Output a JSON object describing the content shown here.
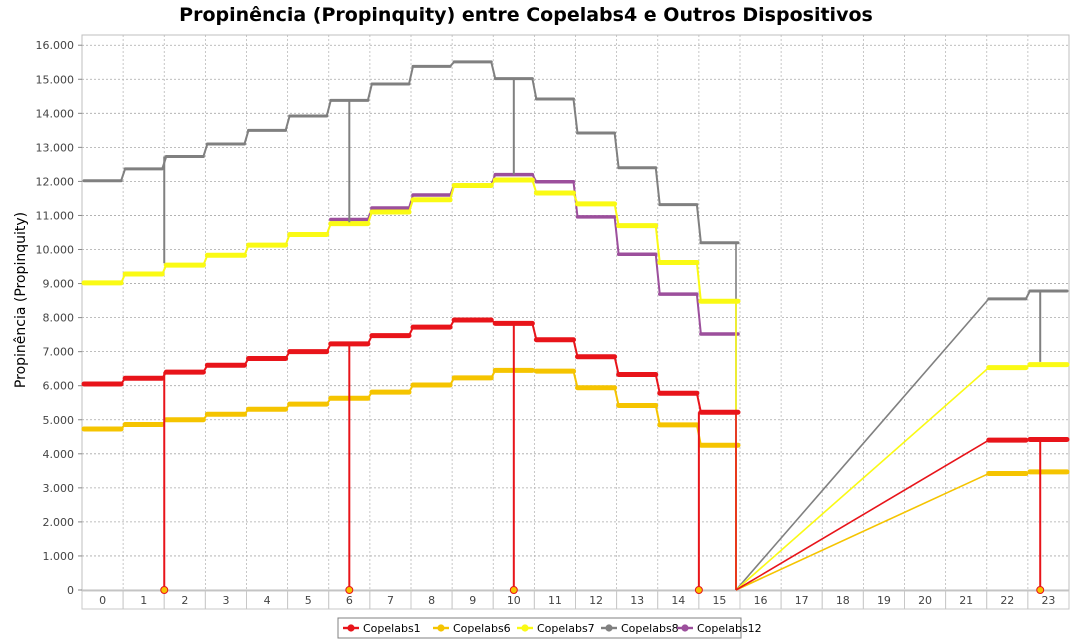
{
  "chart_data": {
    "type": "line",
    "title": "Propinência (Propinquity) entre Copelabs4 e Outros Dispositivos",
    "ylabel": "Propinência (Propinquity)",
    "xlabel": "",
    "ylim": [
      0,
      16300
    ],
    "grid": true,
    "legend_position": "bottom",
    "y_ticks": [
      0,
      1000,
      2000,
      3000,
      4000,
      5000,
      6000,
      7000,
      8000,
      9000,
      10000,
      11000,
      12000,
      13000,
      14000,
      15000,
      16000
    ],
    "y_tick_labels": [
      "0",
      "1.000",
      "2.000",
      "3.000",
      "4.000",
      "5.000",
      "6.000",
      "7.000",
      "8.000",
      "9.000",
      "10.000",
      "11.000",
      "12.000",
      "13.000",
      "14.000",
      "15.000",
      "16.000"
    ],
    "categories": [
      "0",
      "1",
      "2",
      "3",
      "4",
      "5",
      "6",
      "7",
      "8",
      "9",
      "10",
      "11",
      "12",
      "13",
      "14",
      "15",
      "16",
      "17",
      "18",
      "19",
      "20",
      "21",
      "22",
      "23"
    ],
    "series": [
      {
        "name": "Copelabs1",
        "color": "#e8141a",
        "values": [
          6050,
          6220,
          6400,
          6600,
          6800,
          7000,
          7230,
          7470,
          7720,
          7930,
          7830,
          7350,
          6850,
          6330,
          5780,
          5220,
          null,
          null,
          null,
          null,
          null,
          null,
          4400,
          4420
        ],
        "drops": [
          2,
          6.5,
          10.5,
          15,
          23.3
        ]
      },
      {
        "name": "Copelabs6",
        "color": "#f5c400",
        "values": [
          4730,
          4860,
          5000,
          5160,
          5310,
          5460,
          5630,
          5810,
          6020,
          6230,
          6450,
          6430,
          5940,
          5420,
          4850,
          4250,
          null,
          null,
          null,
          null,
          null,
          null,
          3420,
          3470
        ],
        "drops": []
      },
      {
        "name": "Copelabs7",
        "color": "#fafa14",
        "values": [
          9020,
          9280,
          9540,
          9830,
          10130,
          10440,
          10760,
          11100,
          11460,
          11880,
          12040,
          11660,
          11340,
          10700,
          9620,
          8480,
          null,
          null,
          null,
          null,
          null,
          null,
          6530,
          6620
        ],
        "drops": []
      },
      {
        "name": "Copelabs8",
        "color": "#808080",
        "values": [
          12020,
          12370,
          12730,
          13100,
          13500,
          13920,
          14380,
          14860,
          15380,
          15510,
          15020,
          14420,
          13420,
          12400,
          11320,
          10200,
          null,
          null,
          null,
          null,
          null,
          null,
          8550,
          8780
        ],
        "drops": []
      },
      {
        "name": "Copelabs12",
        "color": "#9c4f9c",
        "values": [
          null,
          null,
          null,
          null,
          null,
          null,
          10880,
          11220,
          11600,
          11900,
          12200,
          11990,
          10960,
          9860,
          8690,
          7520,
          null,
          null,
          null,
          null,
          null,
          null,
          null,
          null
        ],
        "drops": []
      }
    ]
  }
}
